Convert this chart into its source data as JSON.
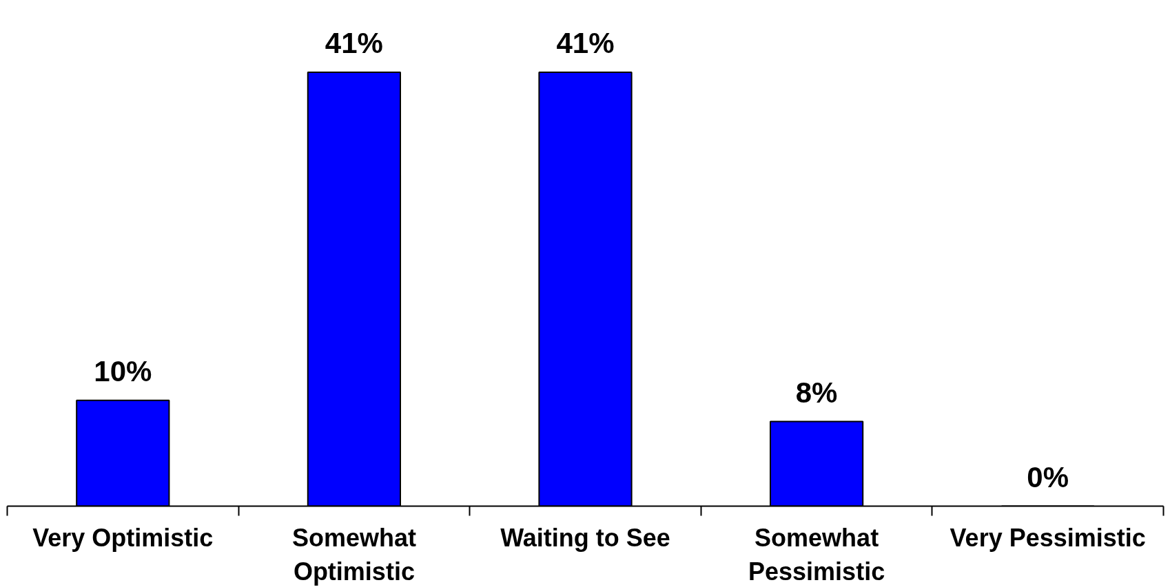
{
  "chart_data": {
    "type": "bar",
    "categories": [
      "Very Optimistic",
      "Somewhat Optimistic",
      "Waiting to See",
      "Somewhat Pessimistic",
      "Very Pessimistic"
    ],
    "values": [
      10,
      41,
      41,
      8,
      0
    ],
    "value_labels": [
      "10%",
      "41%",
      "41%",
      "8%",
      "0%"
    ],
    "color": "#0000ff"
  }
}
